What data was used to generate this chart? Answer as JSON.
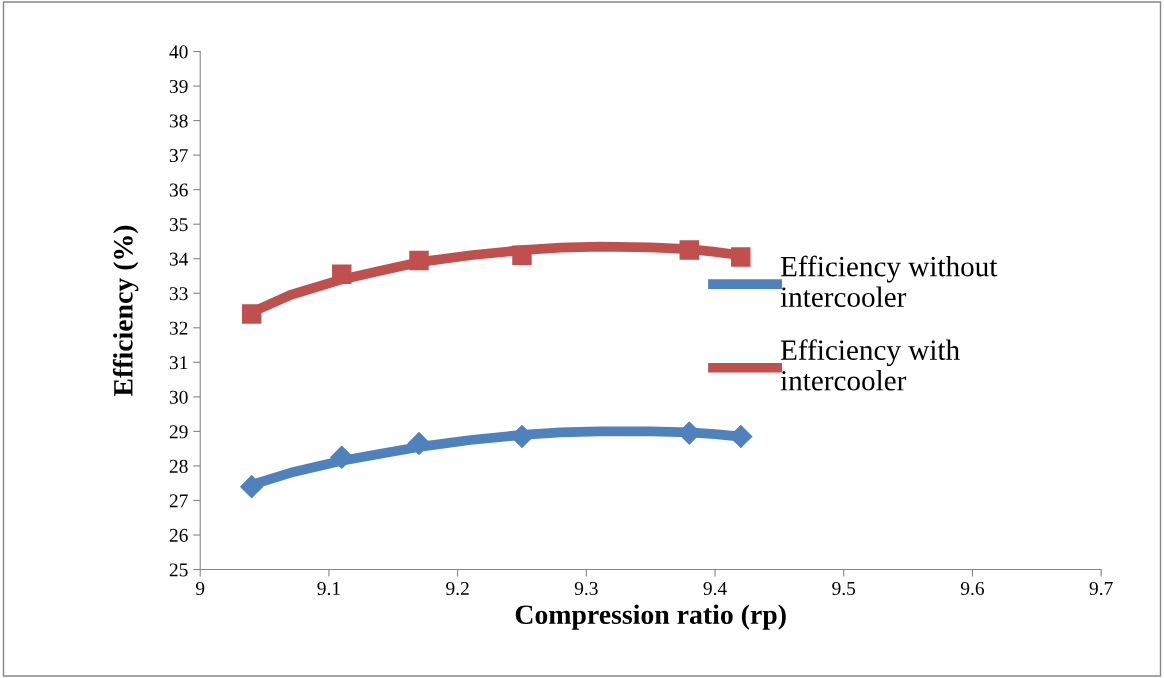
{
  "chart_data": {
    "type": "scatter",
    "xlabel": "Compression ratio (rp)",
    "ylabel": "Efficiency (%)",
    "xlim": [
      9,
      9.7
    ],
    "xticks": [
      9,
      9.1,
      9.2,
      9.3,
      9.4,
      9.5,
      9.6,
      9.7
    ],
    "ylim": [
      25,
      40
    ],
    "yticks": [
      25,
      26,
      27,
      28,
      29,
      30,
      31,
      32,
      33,
      34,
      35,
      36,
      37,
      38,
      39,
      40
    ],
    "grid": false,
    "legend": "right",
    "series": [
      {
        "marker": "diamond",
        "color": "#4f81bd",
        "x": [
          9.04,
          9.11,
          9.17,
          9.25,
          9.38,
          9.42
        ],
        "values": [
          27.4,
          28.25,
          28.65,
          28.85,
          28.95,
          28.85
        ]
      },
      {
        "marker": "square",
        "color": "#c0504d",
        "x": [
          9.04,
          9.11,
          9.17,
          9.25,
          9.38,
          9.42
        ],
        "values": [
          32.4,
          33.55,
          33.95,
          34.1,
          34.25,
          34.05
        ]
      },
      {
        "type": "line",
        "name": "Efficiency without intercooler",
        "color": "#4f81bd",
        "line_style": "solid",
        "x": [
          9.04,
          9.07,
          9.11,
          9.14,
          9.17,
          9.21,
          9.25,
          9.28,
          9.31,
          9.35,
          9.38,
          9.4,
          9.42
        ],
        "values": [
          27.45,
          27.8,
          28.15,
          28.35,
          28.55,
          28.75,
          28.9,
          28.97,
          29.0,
          29.0,
          28.97,
          28.92,
          28.85
        ]
      },
      {
        "type": "line",
        "name": "Efficiency with intercooler",
        "color": "#c0504d",
        "line_style": "solid",
        "x": [
          9.04,
          9.07,
          9.11,
          9.14,
          9.17,
          9.21,
          9.25,
          9.28,
          9.31,
          9.35,
          9.38,
          9.4,
          9.42
        ],
        "values": [
          32.45,
          32.95,
          33.4,
          33.65,
          33.9,
          34.1,
          34.25,
          34.32,
          34.35,
          34.33,
          34.28,
          34.2,
          34.1
        ]
      }
    ]
  }
}
